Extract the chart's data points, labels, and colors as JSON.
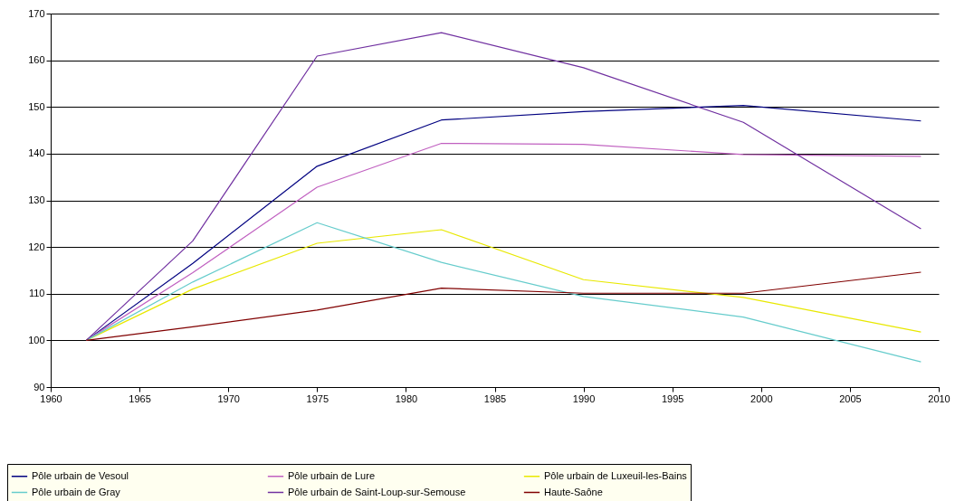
{
  "chart_data": {
    "type": "line",
    "x": [
      1962,
      1968,
      1975,
      1982,
      1990,
      1999,
      2009
    ],
    "series": [
      {
        "name": "Pôle urbain de Vesoul",
        "color": "#000080",
        "values": [
          100,
          116.5,
          137.3,
          147.2,
          149,
          150.3,
          147
        ]
      },
      {
        "name": "Pôle urbain de Lure",
        "color": "#c060c0",
        "values": [
          100,
          114.5,
          132.8,
          142.2,
          142,
          139.8,
          139.4
        ]
      },
      {
        "name": "Pôle urbain de Luxeuil-les-Bains",
        "color": "#e8e800",
        "values": [
          100,
          111,
          120.8,
          123.7,
          113,
          109.2,
          101.8
        ]
      },
      {
        "name": "Pôle urbain de Gray",
        "color": "#66cccc",
        "values": [
          100,
          112.5,
          125.2,
          116.7,
          109.4,
          105,
          95.4
        ]
      },
      {
        "name": "Pôle urbain de Saint-Loup-sur-Semouse",
        "color": "#7030a0",
        "values": [
          100,
          121.3,
          160.9,
          165.9,
          158.4,
          146.7,
          123.9
        ]
      },
      {
        "name": "Haute-Saône",
        "color": "#800000",
        "values": [
          100,
          102.9,
          106.5,
          111.2,
          110.1,
          110.1,
          114.6
        ]
      }
    ],
    "xlim": [
      1960,
      2010
    ],
    "xticks": [
      1960,
      1965,
      1970,
      1975,
      1980,
      1985,
      1990,
      1995,
      2000,
      2005,
      2010
    ],
    "ylim": [
      90,
      170
    ],
    "yticks": [
      90,
      100,
      110,
      120,
      130,
      140,
      150,
      160,
      170
    ],
    "grid": "y",
    "legend": "bottom",
    "marker": "none",
    "line_style": "solid"
  }
}
